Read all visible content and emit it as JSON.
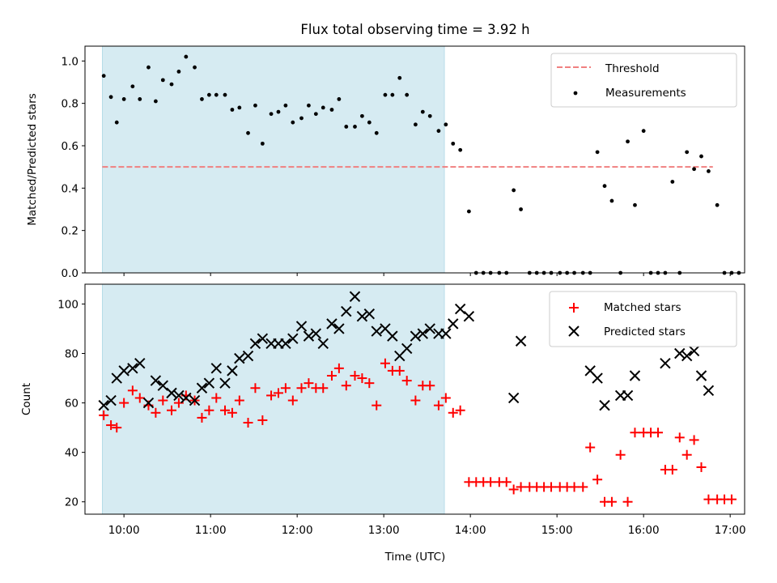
{
  "chart_data": [
    {
      "type": "scatter",
      "title": "Flux total observing time = 3.92 h",
      "xlabel": "",
      "ylabel": "Matched/Predicted stars",
      "xlim": [
        "09:33",
        "17:10"
      ],
      "ylim": [
        0,
        1.07
      ],
      "yticks": [
        0.0,
        0.2,
        0.4,
        0.6,
        0.8,
        1.0
      ],
      "ytick_labels": [
        "0.0",
        "0.2",
        "0.4",
        "0.6",
        "0.8",
        "1.0"
      ],
      "shaded_span": [
        "09:45",
        "13:42"
      ],
      "threshold": {
        "label": "Threshold",
        "y": 0.5,
        "x_range": [
          "09:45",
          "16:48"
        ],
        "color": "#f08080",
        "style": "dashed"
      },
      "series": [
        {
          "name": "Measurements",
          "marker": "dot",
          "color": "#000000",
          "points": [
            [
              "09:46",
              0.93
            ],
            [
              "09:51",
              0.83
            ],
            [
              "09:55",
              0.71
            ],
            [
              "10:00",
              0.82
            ],
            [
              "10:06",
              0.88
            ],
            [
              "10:11",
              0.82
            ],
            [
              "10:17",
              0.97
            ],
            [
              "10:22",
              0.81
            ],
            [
              "10:27",
              0.91
            ],
            [
              "10:33",
              0.89
            ],
            [
              "10:38",
              0.95
            ],
            [
              "10:43",
              1.02
            ],
            [
              "10:49",
              0.97
            ],
            [
              "10:54",
              0.82
            ],
            [
              "10:59",
              0.84
            ],
            [
              "11:04",
              0.84
            ],
            [
              "11:10",
              0.84
            ],
            [
              "11:15",
              0.77
            ],
            [
              "11:20",
              0.78
            ],
            [
              "11:26",
              0.66
            ],
            [
              "11:31",
              0.79
            ],
            [
              "11:36",
              0.61
            ],
            [
              "11:42",
              0.75
            ],
            [
              "11:47",
              0.76
            ],
            [
              "11:52",
              0.79
            ],
            [
              "11:57",
              0.71
            ],
            [
              "12:03",
              0.73
            ],
            [
              "12:08",
              0.79
            ],
            [
              "12:13",
              0.75
            ],
            [
              "12:18",
              0.78
            ],
            [
              "12:24",
              0.77
            ],
            [
              "12:29",
              0.82
            ],
            [
              "12:34",
              0.69
            ],
            [
              "12:40",
              0.69
            ],
            [
              "12:45",
              0.74
            ],
            [
              "12:50",
              0.71
            ],
            [
              "12:55",
              0.66
            ],
            [
              "13:01",
              0.84
            ],
            [
              "13:06",
              0.84
            ],
            [
              "13:11",
              0.92
            ],
            [
              "13:16",
              0.84
            ],
            [
              "13:22",
              0.7
            ],
            [
              "13:27",
              0.76
            ],
            [
              "13:32",
              0.74
            ],
            [
              "13:38",
              0.67
            ],
            [
              "13:43",
              0.7
            ],
            [
              "13:48",
              0.61
            ],
            [
              "13:53",
              0.58
            ],
            [
              "13:59",
              0.29
            ],
            [
              "14:04",
              0.0
            ],
            [
              "14:09",
              0.0
            ],
            [
              "14:14",
              0.0
            ],
            [
              "14:20",
              0.0
            ],
            [
              "14:25",
              0.0
            ],
            [
              "14:30",
              0.39
            ],
            [
              "14:35",
              0.3
            ],
            [
              "14:41",
              0.0
            ],
            [
              "14:46",
              0.0
            ],
            [
              "14:51",
              0.0
            ],
            [
              "14:56",
              0.0
            ],
            [
              "15:02",
              0.0
            ],
            [
              "15:07",
              0.0
            ],
            [
              "15:12",
              0.0
            ],
            [
              "15:18",
              0.0
            ],
            [
              "15:23",
              0.0
            ],
            [
              "15:28",
              0.57
            ],
            [
              "15:33",
              0.41
            ],
            [
              "15:38",
              0.34
            ],
            [
              "15:44",
              0.0
            ],
            [
              "15:49",
              0.62
            ],
            [
              "15:54",
              0.32
            ],
            [
              "16:00",
              0.67
            ],
            [
              "16:05",
              0.0
            ],
            [
              "16:10",
              0.0
            ],
            [
              "16:15",
              0.0
            ],
            [
              "16:20",
              0.43
            ],
            [
              "16:25",
              0.0
            ],
            [
              "16:30",
              0.57
            ],
            [
              "16:35",
              0.49
            ],
            [
              "16:40",
              0.55
            ],
            [
              "16:45",
              0.48
            ],
            [
              "16:51",
              0.32
            ],
            [
              "16:56",
              0.0
            ],
            [
              "17:01",
              0.0
            ],
            [
              "17:06",
              0.0
            ]
          ]
        }
      ],
      "legend": {
        "position": "upper-right",
        "entries": [
          "Threshold",
          "Measurements"
        ]
      }
    },
    {
      "type": "scatter",
      "title": "",
      "xlabel": "Time (UTC)",
      "ylabel": "Count",
      "xlim": [
        "09:33",
        "17:10"
      ],
      "ylim": [
        15,
        108
      ],
      "xticks": [
        "10:00",
        "11:00",
        "12:00",
        "13:00",
        "14:00",
        "15:00",
        "16:00",
        "17:00"
      ],
      "yticks": [
        20,
        40,
        60,
        80,
        100
      ],
      "ytick_labels": [
        "20",
        "40",
        "60",
        "80",
        "100"
      ],
      "shaded_span": [
        "09:45",
        "13:42"
      ],
      "series": [
        {
          "name": "Matched stars",
          "marker": "plus",
          "color": "#ff0000",
          "points": [
            [
              "09:46",
              55
            ],
            [
              "09:51",
              51
            ],
            [
              "09:55",
              50
            ],
            [
              "10:00",
              60
            ],
            [
              "10:06",
              65
            ],
            [
              "10:11",
              62
            ],
            [
              "10:17",
              59
            ],
            [
              "10:22",
              56
            ],
            [
              "10:27",
              61
            ],
            [
              "10:33",
              57
            ],
            [
              "10:38",
              60
            ],
            [
              "10:43",
              63
            ],
            [
              "10:49",
              61
            ],
            [
              "10:54",
              54
            ],
            [
              "10:59",
              57
            ],
            [
              "11:04",
              62
            ],
            [
              "11:10",
              57
            ],
            [
              "11:15",
              56
            ],
            [
              "11:20",
              61
            ],
            [
              "11:26",
              52
            ],
            [
              "11:31",
              66
            ],
            [
              "11:36",
              53
            ],
            [
              "11:42",
              63
            ],
            [
              "11:47",
              64
            ],
            [
              "11:52",
              66
            ],
            [
              "11:57",
              61
            ],
            [
              "12:03",
              66
            ],
            [
              "12:08",
              68
            ],
            [
              "12:13",
              66
            ],
            [
              "12:18",
              66
            ],
            [
              "12:24",
              71
            ],
            [
              "12:29",
              74
            ],
            [
              "12:34",
              67
            ],
            [
              "12:40",
              71
            ],
            [
              "12:45",
              70
            ],
            [
              "12:50",
              68
            ],
            [
              "12:55",
              59
            ],
            [
              "13:01",
              76
            ],
            [
              "13:06",
              73
            ],
            [
              "13:11",
              73
            ],
            [
              "13:16",
              69
            ],
            [
              "13:22",
              61
            ],
            [
              "13:27",
              67
            ],
            [
              "13:32",
              67
            ],
            [
              "13:38",
              59
            ],
            [
              "13:43",
              62
            ],
            [
              "13:48",
              56
            ],
            [
              "13:53",
              57
            ],
            [
              "13:59",
              28
            ],
            [
              "14:04",
              28
            ],
            [
              "14:09",
              28
            ],
            [
              "14:14",
              28
            ],
            [
              "14:20",
              28
            ],
            [
              "14:25",
              28
            ],
            [
              "14:30",
              25
            ],
            [
              "14:35",
              26
            ],
            [
              "14:41",
              26
            ],
            [
              "14:46",
              26
            ],
            [
              "14:51",
              26
            ],
            [
              "14:56",
              26
            ],
            [
              "15:02",
              26
            ],
            [
              "15:07",
              26
            ],
            [
              "15:12",
              26
            ],
            [
              "15:18",
              26
            ],
            [
              "15:23",
              42
            ],
            [
              "15:28",
              29
            ],
            [
              "15:33",
              20
            ],
            [
              "15:38",
              20
            ],
            [
              "15:44",
              39
            ],
            [
              "15:49",
              20
            ],
            [
              "15:54",
              48
            ],
            [
              "16:00",
              48
            ],
            [
              "16:05",
              48
            ],
            [
              "16:10",
              48
            ],
            [
              "16:15",
              33
            ],
            [
              "16:20",
              33
            ],
            [
              "16:25",
              46
            ],
            [
              "16:30",
              39
            ],
            [
              "16:35",
              45
            ],
            [
              "16:40",
              34
            ],
            [
              "16:45",
              21
            ],
            [
              "16:51",
              21
            ],
            [
              "16:56",
              21
            ],
            [
              "17:01",
              21
            ]
          ]
        },
        {
          "name": "Predicted stars",
          "marker": "x",
          "color": "#000000",
          "points": [
            [
              "09:46",
              59
            ],
            [
              "09:51",
              61
            ],
            [
              "09:55",
              70
            ],
            [
              "10:00",
              73
            ],
            [
              "10:06",
              74
            ],
            [
              "10:11",
              76
            ],
            [
              "10:17",
              60
            ],
            [
              "10:22",
              69
            ],
            [
              "10:27",
              67
            ],
            [
              "10:33",
              64
            ],
            [
              "10:38",
              63
            ],
            [
              "10:43",
              62
            ],
            [
              "10:49",
              61
            ],
            [
              "10:54",
              66
            ],
            [
              "10:59",
              68
            ],
            [
              "11:04",
              74
            ],
            [
              "11:10",
              68
            ],
            [
              "11:15",
              73
            ],
            [
              "11:20",
              78
            ],
            [
              "11:26",
              79
            ],
            [
              "11:31",
              84
            ],
            [
              "11:36",
              86
            ],
            [
              "11:42",
              84
            ],
            [
              "11:47",
              84
            ],
            [
              "11:52",
              84
            ],
            [
              "11:57",
              86
            ],
            [
              "12:03",
              91
            ],
            [
              "12:08",
              87
            ],
            [
              "12:13",
              88
            ],
            [
              "12:18",
              84
            ],
            [
              "12:24",
              92
            ],
            [
              "12:29",
              90
            ],
            [
              "12:34",
              97
            ],
            [
              "12:40",
              103
            ],
            [
              "12:45",
              95
            ],
            [
              "12:50",
              96
            ],
            [
              "12:55",
              89
            ],
            [
              "13:01",
              90
            ],
            [
              "13:06",
              87
            ],
            [
              "13:11",
              79
            ],
            [
              "13:16",
              82
            ],
            [
              "13:22",
              87
            ],
            [
              "13:27",
              88
            ],
            [
              "13:32",
              90
            ],
            [
              "13:38",
              88
            ],
            [
              "13:43",
              88
            ],
            [
              "13:48",
              92
            ],
            [
              "13:53",
              98
            ],
            [
              "13:59",
              95
            ],
            [
              "14:30",
              62
            ],
            [
              "14:35",
              85
            ],
            [
              "15:23",
              73
            ],
            [
              "15:28",
              70
            ],
            [
              "15:33",
              59
            ],
            [
              "15:44",
              63
            ],
            [
              "15:49",
              63
            ],
            [
              "15:54",
              71
            ],
            [
              "16:15",
              76
            ],
            [
              "16:25",
              80
            ],
            [
              "16:30",
              79
            ],
            [
              "16:35",
              81
            ],
            [
              "16:40",
              71
            ],
            [
              "16:45",
              65
            ]
          ]
        }
      ],
      "legend": {
        "position": "upper-right",
        "entries": [
          "Matched stars",
          "Predicted stars"
        ]
      }
    }
  ]
}
